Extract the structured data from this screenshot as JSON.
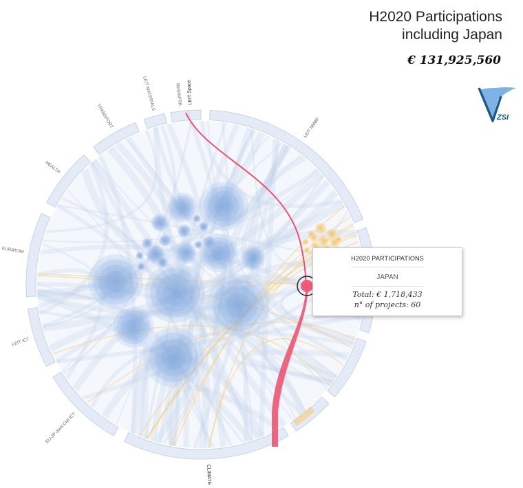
{
  "header": {
    "title_line1": "H2020 Participations",
    "title_line2": "including Japan",
    "total": "€ 131,925,560"
  },
  "logo": {
    "text": "ZSI"
  },
  "ring": {
    "segments": [
      {
        "label": "LEIT Space",
        "active": true
      },
      {
        "label": "LEIT NMBP",
        "active": false
      },
      {
        "label": "CLIMATE",
        "active": true
      },
      {
        "label": "EU-JP Joint Call ICT",
        "active": false
      },
      {
        "label": "LEIT ICT",
        "active": false
      },
      {
        "label": "EURATOM",
        "active": false
      },
      {
        "label": "HEALTH",
        "active": false
      },
      {
        "label": "TRANSPORT",
        "active": false
      },
      {
        "label": "LEIT MATERIALS",
        "active": false
      },
      {
        "label": "RESINFRA",
        "active": false
      }
    ]
  },
  "tooltip": {
    "heading": "H2020 PARTICIPATIONS",
    "country": "JAPAN",
    "total_line": "Total: € 1,718,433",
    "projects_line": "n° of projects: 60"
  },
  "colors": {
    "ring_fill": "#e4ebf6",
    "ring_stroke": "#c8d3e6",
    "flow_blue": "#b9cde9",
    "flow_orange": "#f6d28a",
    "bubble_blue": "#7ea7dc",
    "bubble_orange": "#f5c56a",
    "highlight_red": "#f0506e"
  }
}
